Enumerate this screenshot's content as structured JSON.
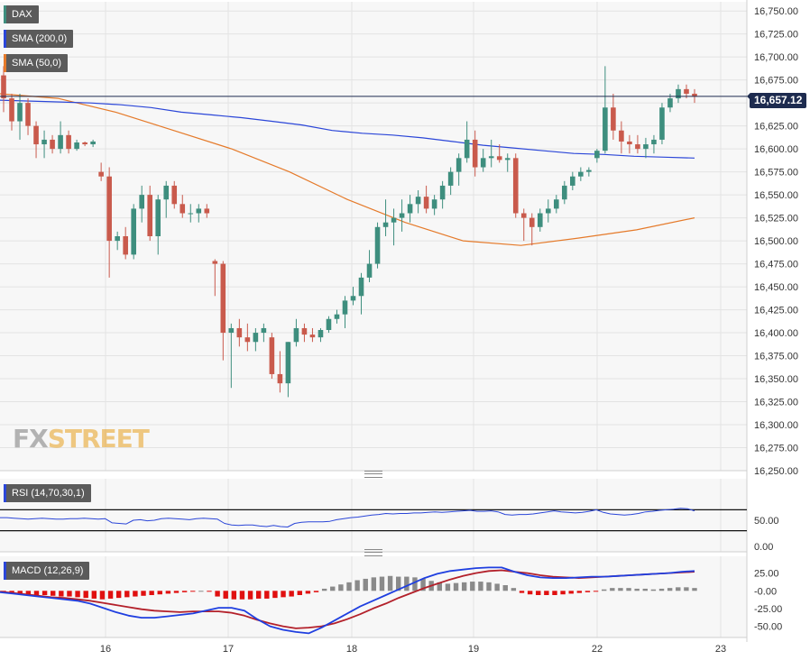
{
  "chart_data": [
    {
      "type": "candlestick",
      "symbol": "DAX",
      "legend": [
        "DAX",
        "SMA (200,0)",
        "SMA (50,0)"
      ],
      "last_price_label": "16,657.12",
      "last_price": 16657.12,
      "y_ticks": [
        "16,750.00",
        "16,725.00",
        "16,700.00",
        "16,675.00",
        "16,650.00",
        "16,625.00",
        "16,600.00",
        "16,575.00",
        "16,550.00",
        "16,525.00",
        "16,500.00",
        "16,475.00",
        "16,450.00",
        "16,425.00",
        "16,400.00",
        "16,375.00",
        "16,350.00",
        "16,325.00",
        "16,300.00",
        "16,275.00",
        "16,250.00"
      ],
      "ylim": [
        16250,
        16760
      ],
      "x_ticks": [
        "16",
        "17",
        "18",
        "19",
        "22",
        "23"
      ],
      "candles": [
        [
          16680,
          16690,
          16640,
          16655
        ],
        [
          16655,
          16660,
          16620,
          16630
        ],
        [
          16630,
          16660,
          16610,
          16650
        ],
        [
          16650,
          16655,
          16615,
          16625
        ],
        [
          16625,
          16630,
          16590,
          16605
        ],
        [
          16605,
          16620,
          16590,
          16610
        ],
        [
          16610,
          16615,
          16595,
          16600
        ],
        [
          16600,
          16630,
          16595,
          16615
        ],
        [
          16615,
          16620,
          16595,
          16600
        ],
        [
          16600,
          16610,
          16598,
          16607
        ],
        [
          16607,
          16608,
          16603,
          16605
        ],
        [
          16605,
          16610,
          16602,
          16608
        ],
        [
          16575,
          16585,
          16565,
          16570
        ],
        [
          16570,
          16580,
          16460,
          16500
        ],
        [
          16500,
          16510,
          16490,
          16505
        ],
        [
          16505,
          16515,
          16480,
          16485
        ],
        [
          16485,
          16540,
          16480,
          16535
        ],
        [
          16535,
          16560,
          16520,
          16550
        ],
        [
          16550,
          16560,
          16500,
          16505
        ],
        [
          16505,
          16550,
          16485,
          16545
        ],
        [
          16545,
          16565,
          16525,
          16560
        ],
        [
          16560,
          16565,
          16535,
          16540
        ],
        [
          16540,
          16550,
          16525,
          16530
        ],
        [
          16530,
          16540,
          16520,
          16530
        ],
        [
          16530,
          16540,
          16520,
          16535
        ],
        [
          16535,
          16540,
          16525,
          16530
        ],
        [
          16478,
          16480,
          16440,
          16475
        ],
        [
          16475,
          16478,
          16370,
          16400
        ],
        [
          16400,
          16410,
          16340,
          16405
        ],
        [
          16405,
          16415,
          16385,
          16395
        ],
        [
          16395,
          16410,
          16380,
          16390
        ],
        [
          16390,
          16405,
          16380,
          16400
        ],
        [
          16400,
          16410,
          16390,
          16405
        ],
        [
          16395,
          16400,
          16350,
          16355
        ],
        [
          16355,
          16380,
          16335,
          16345
        ],
        [
          16345,
          16390,
          16330,
          16390
        ],
        [
          16390,
          16415,
          16385,
          16405
        ],
        [
          16405,
          16410,
          16390,
          16398
        ],
        [
          16398,
          16405,
          16390,
          16395
        ],
        [
          16395,
          16405,
          16390,
          16403
        ],
        [
          16403,
          16418,
          16400,
          16415
        ],
        [
          16415,
          16425,
          16410,
          16420
        ],
        [
          16420,
          16440,
          16405,
          16435
        ],
        [
          16435,
          16450,
          16430,
          16440
        ],
        [
          16440,
          16465,
          16420,
          16460
        ],
        [
          16460,
          16490,
          16455,
          16475
        ],
        [
          16475,
          16520,
          16470,
          16515
        ],
        [
          16515,
          16545,
          16505,
          16520
        ],
        [
          16520,
          16535,
          16495,
          16525
        ],
        [
          16525,
          16545,
          16510,
          16530
        ],
        [
          16530,
          16550,
          16520,
          16540
        ],
        [
          16540,
          16555,
          16530,
          16548
        ],
        [
          16548,
          16560,
          16530,
          16535
        ],
        [
          16535,
          16550,
          16528,
          16545
        ],
        [
          16545,
          16565,
          16535,
          16560
        ],
        [
          16560,
          16580,
          16550,
          16575
        ],
        [
          16575,
          16595,
          16560,
          16590
        ],
        [
          16590,
          16630,
          16585,
          16610
        ],
        [
          16610,
          16620,
          16570,
          16580
        ],
        [
          16580,
          16600,
          16575,
          16590
        ],
        [
          16590,
          16610,
          16580,
          16592
        ],
        [
          16592,
          16605,
          16585,
          16588
        ],
        [
          16588,
          16595,
          16575,
          16590
        ],
        [
          16590,
          16595,
          16525,
          16530
        ],
        [
          16530,
          16535,
          16500,
          16525
        ],
        [
          16525,
          16530,
          16495,
          16515
        ],
        [
          16515,
          16535,
          16510,
          16530
        ],
        [
          16530,
          16545,
          16520,
          16535
        ],
        [
          16535,
          16550,
          16530,
          16545
        ],
        [
          16545,
          16565,
          16540,
          16560
        ],
        [
          16560,
          16575,
          16555,
          16570
        ],
        [
          16570,
          16580,
          16565,
          16575
        ],
        [
          16575,
          16580,
          16570,
          16577
        ],
        [
          16590,
          16600,
          16585,
          16598
        ],
        [
          16598,
          16690,
          16595,
          16645
        ],
        [
          16645,
          16660,
          16610,
          16620
        ],
        [
          16620,
          16630,
          16595,
          16608
        ],
        [
          16608,
          16615,
          16595,
          16605
        ],
        [
          16605,
          16615,
          16595,
          16600
        ],
        [
          16600,
          16612,
          16590,
          16605
        ],
        [
          16605,
          16615,
          16595,
          16610
        ],
        [
          16610,
          16650,
          16605,
          16645
        ],
        [
          16645,
          16660,
          16640,
          16655
        ],
        [
          16655,
          16670,
          16650,
          16665
        ],
        [
          16665,
          16670,
          16655,
          16660
        ],
        [
          16660,
          16665,
          16650,
          16657
        ]
      ],
      "sma200": [
        16653,
        16652,
        16651,
        16650,
        16648,
        16645,
        16640,
        16637,
        16634,
        16630,
        16626,
        16620,
        16617,
        16615,
        16612,
        16608,
        16604,
        16601,
        16598,
        16595,
        16594,
        16592,
        16591,
        16590
      ],
      "sma50": [
        16660,
        16655,
        16640,
        16620,
        16600,
        16575,
        16545,
        16520,
        16500,
        16495,
        16503,
        16512,
        16525
      ],
      "series_colors": {
        "up": "#3e8e7e",
        "down": "#c95a4c",
        "sma200": "#2b46d8",
        "sma50": "#e57a2a",
        "price_line": "#1d2b4f"
      }
    },
    {
      "type": "line",
      "name": "RSI (14,70,30,1)",
      "y_ticks": [
        "50.00",
        "0.00"
      ],
      "ylim": [
        0,
        100
      ],
      "levels": [
        70,
        30
      ],
      "values": [
        55,
        55,
        54,
        53,
        52,
        53,
        54,
        53,
        52,
        52,
        53,
        53,
        54,
        53,
        52,
        53,
        45,
        44,
        43,
        50,
        51,
        49,
        50,
        53,
        54,
        53,
        52,
        51,
        53,
        54,
        53,
        52,
        44,
        41,
        40,
        41,
        41,
        39,
        38,
        40,
        38,
        37,
        44,
        46,
        47,
        47,
        47,
        48,
        51,
        53,
        55,
        56,
        58,
        60,
        61,
        63,
        62,
        63,
        63,
        64,
        64,
        65,
        66,
        65,
        66,
        67,
        68,
        69,
        67,
        67,
        68,
        66,
        61,
        60,
        61,
        61,
        62,
        64,
        66,
        68,
        66,
        65,
        64,
        65,
        67,
        70,
        65,
        62,
        61,
        60,
        61,
        63,
        66,
        67,
        69,
        70,
        71,
        73,
        72,
        68
      ]
    },
    {
      "type": "bar+line",
      "name": "MACD (12,26,9)",
      "y_ticks": [
        "25.00",
        "-0.00",
        "-25.00",
        "-50.00"
      ],
      "ylim": [
        -62,
        36
      ],
      "histogram": [
        -2,
        -3,
        -4,
        -5,
        -6,
        -6,
        -7,
        -8,
        -8,
        -9,
        -10,
        -11,
        -12,
        -11,
        -10,
        -9,
        -8,
        -7,
        -6,
        -5,
        -4,
        -3,
        -2,
        -1,
        0,
        -1,
        -8,
        -11,
        -12,
        -12,
        -12,
        -11,
        -11,
        -10,
        -9,
        -8,
        -6,
        -4,
        -2,
        3,
        6,
        9,
        12,
        15,
        17,
        19,
        20,
        21,
        20,
        20,
        19,
        17,
        14,
        12,
        10,
        11,
        12,
        13,
        13,
        12,
        10,
        8,
        4,
        -3,
        -5,
        -6,
        -6,
        -6,
        -5,
        -4,
        -3,
        -2,
        -1,
        2,
        4,
        4,
        4,
        3,
        3,
        2,
        3,
        4,
        5,
        5,
        4
      ],
      "macd_line": [
        -2,
        -4,
        -6,
        -8,
        -10,
        -12,
        -14,
        -18,
        -24,
        -30,
        -35,
        -38,
        -38,
        -36,
        -34,
        -32,
        -28,
        -24,
        -24,
        -28,
        -40,
        -50,
        -55,
        -58,
        -60,
        -52,
        -42,
        -32,
        -22,
        -14,
        -6,
        2,
        10,
        18,
        24,
        28,
        30,
        32,
        33,
        33,
        27,
        22,
        19,
        18,
        18,
        19,
        20,
        20,
        21,
        22,
        23,
        24,
        25,
        27,
        28
      ],
      "signal_line": [
        -1,
        -3,
        -5,
        -7,
        -9,
        -10,
        -12,
        -14,
        -17,
        -20,
        -23,
        -26,
        -28,
        -29,
        -30,
        -29,
        -29,
        -29,
        -31,
        -35,
        -41,
        -46,
        -50,
        -53,
        -52,
        -50,
        -46,
        -40,
        -33,
        -25,
        -18,
        -10,
        -3,
        4,
        10,
        16,
        21,
        25,
        28,
        29,
        27,
        25,
        22,
        20,
        19,
        18,
        19,
        20,
        21,
        22,
        23,
        24,
        25,
        26,
        27
      ]
    }
  ]
}
